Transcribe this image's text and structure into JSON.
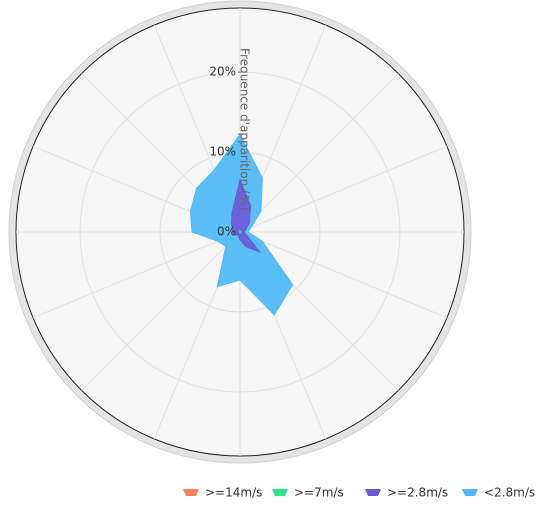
{
  "chart_data": {
    "type": "windrose",
    "y_axis_label": "Frequence d'apparition (%)",
    "categories": [
      null,
      null,
      null,
      null,
      null,
      null,
      null,
      null,
      null,
      null,
      null,
      null,
      null,
      null,
      null,
      null
    ],
    "series": [
      {
        "name": ">=14m/s",
        "color": "#f7825a",
        "values": [
          0,
          0,
          0,
          0,
          0,
          0,
          0,
          0,
          0,
          0,
          0,
          0,
          0,
          0,
          0,
          0
        ]
      },
      {
        "name": ">=7m/s",
        "color": "#2ee28f",
        "values": [
          0.2,
          0.1,
          0.1,
          0.1,
          0.1,
          0.1,
          0.2,
          0.1,
          0.1,
          0.1,
          0.1,
          0.1,
          0.1,
          0.1,
          0.1,
          0.1
        ]
      },
      {
        "name": ">=2.8m/s",
        "color": "#6a5ad8",
        "values": [
          6.3,
          3.4,
          1.5,
          0.7,
          0.4,
          0.7,
          3.3,
          1.9,
          0.9,
          0.4,
          0.4,
          0.7,
          0.8,
          0.9,
          1.4,
          2.5
        ]
      },
      {
        "name": "<2.8m/s",
        "color": "#4db8f5",
        "values": [
          5.7,
          3.8,
          2.1,
          0.7,
          0.5,
          2.2,
          5.8,
          9.2,
          5.0,
          6.9,
          2.0,
          2.2,
          5.1,
          5.7,
          6.2,
          5.8
        ]
      }
    ],
    "ylim": [
      0,
      28
    ],
    "yticks": [
      {
        "value": 0,
        "label": "0%"
      },
      {
        "value": 10,
        "label": "10%"
      },
      {
        "value": 20,
        "label": "20%"
      }
    ],
    "grid": true,
    "stacked": true,
    "legend": "bottom-right"
  }
}
